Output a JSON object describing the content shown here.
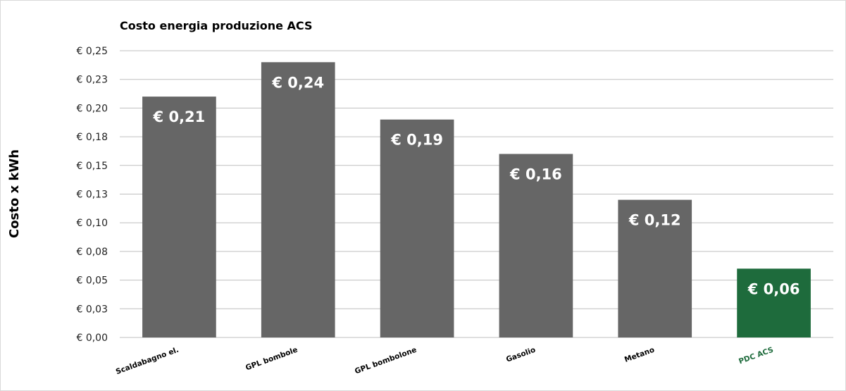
{
  "chart_data": {
    "type": "bar",
    "title": "Costo energia produzione ACS",
    "ylabel": "Costo x kWh",
    "xlabel": "",
    "categories": [
      "Scaldabagno el.",
      "GPL bombole",
      "GPL bombolone",
      "Gasolio",
      "Metano",
      "PDC ACS"
    ],
    "values": [
      0.21,
      0.24,
      0.19,
      0.16,
      0.12,
      0.06
    ],
    "data_labels": [
      "€ 0,21",
      "€ 0,24",
      "€ 0,19",
      "€ 0,16",
      "€ 0,12",
      "€ 0,06"
    ],
    "ylim": [
      0,
      0.25
    ],
    "yticks": [
      0,
      0.025,
      0.05,
      0.075,
      0.1,
      0.125,
      0.15,
      0.175,
      0.2,
      0.225,
      0.25
    ],
    "ytick_labels": [
      "€ 0,00",
      "€ 0,03",
      "€ 0,05",
      "€ 0,08",
      "€ 0,10",
      "€ 0,13",
      "€ 0,15",
      "€ 0,18",
      "€ 0,20",
      "€ 0,23",
      "€ 0,25"
    ],
    "grid": true,
    "colors": {
      "bar": "#666666",
      "highlight_bar": "#1e6b3c",
      "highlight_label": "#1e6b3c",
      "grid": "#bfbfbf"
    },
    "highlight_category": "PDC ACS"
  }
}
